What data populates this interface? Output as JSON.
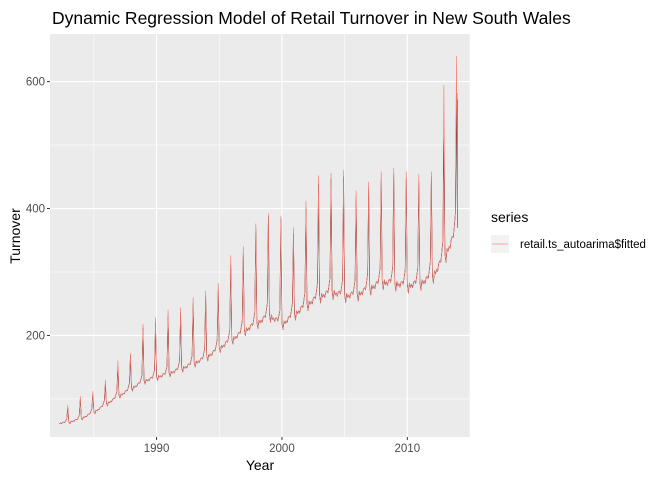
{
  "chart_data": {
    "type": "line",
    "title": "Dynamic Regression Model of Retail Turnover in New South Wales",
    "xlabel": "Year",
    "ylabel": "Turnover",
    "xlim": [
      1981.5,
      2015.0
    ],
    "ylim": [
      40,
      675
    ],
    "x_ticks": [
      1990,
      2000,
      2010
    ],
    "y_ticks": [
      200,
      400,
      600
    ],
    "x_tick_labels": [
      "1990",
      "2000",
      "2010"
    ],
    "y_tick_labels": [
      "200",
      "400",
      "600"
    ],
    "grid": true,
    "legend": {
      "title": "series",
      "position": "right"
    },
    "series": [
      {
        "name": "",
        "color": "#000000",
        "start": 1982.25,
        "frequency": 12,
        "annual_base": [
          [
            1982,
            62
          ],
          [
            1983,
            64
          ],
          [
            1984,
            70
          ],
          [
            1985,
            80
          ],
          [
            1986,
            93
          ],
          [
            1987,
            106
          ],
          [
            1988,
            118
          ],
          [
            1989,
            130
          ],
          [
            1990,
            136
          ],
          [
            1991,
            142
          ],
          [
            1992,
            150
          ],
          [
            1993,
            158
          ],
          [
            1994,
            168
          ],
          [
            1995,
            182
          ],
          [
            1996,
            196
          ],
          [
            1997,
            210
          ],
          [
            1998,
            222
          ],
          [
            1999,
            235
          ],
          [
            2000,
            220
          ],
          [
            2001,
            236
          ],
          [
            2002,
            252
          ],
          [
            2003,
            265
          ],
          [
            2004,
            272
          ],
          [
            2005,
            266
          ],
          [
            2006,
            268
          ],
          [
            2007,
            278
          ],
          [
            2008,
            288
          ],
          [
            2009,
            286
          ],
          [
            2010,
            282
          ],
          [
            2011,
            286
          ],
          [
            2012,
            296
          ],
          [
            2013,
            330
          ],
          [
            2014,
            372
          ]
        ],
        "december_peaks": [
          [
            1982,
            86
          ],
          [
            1983,
            100
          ],
          [
            1984,
            108
          ],
          [
            1985,
            124
          ],
          [
            1986,
            150
          ],
          [
            1987,
            168
          ],
          [
            1988,
            212
          ],
          [
            1989,
            220
          ],
          [
            1990,
            230
          ],
          [
            1991,
            236
          ],
          [
            1992,
            250
          ],
          [
            1993,
            262
          ],
          [
            1994,
            272
          ],
          [
            1995,
            312
          ],
          [
            1996,
            328
          ],
          [
            1997,
            368
          ],
          [
            1998,
            388
          ],
          [
            1999,
            384
          ],
          [
            2000,
            360
          ],
          [
            2001,
            400
          ],
          [
            2002,
            438
          ],
          [
            2003,
            446
          ],
          [
            2004,
            450
          ],
          [
            2005,
            418
          ],
          [
            2006,
            432
          ],
          [
            2007,
            446
          ],
          [
            2008,
            454
          ],
          [
            2009,
            448
          ],
          [
            2010,
            442
          ],
          [
            2011,
            450
          ],
          [
            2012,
            510
          ],
          [
            2013,
            570
          ]
        ],
        "end": [
          2014.0,
          572
        ]
      },
      {
        "name": "retail.ts_autoarima$fitted",
        "color": "#F8766D",
        "start": 1982.25,
        "frequency": 12,
        "annual_base": [
          [
            1982,
            62
          ],
          [
            1983,
            64
          ],
          [
            1984,
            70
          ],
          [
            1985,
            80
          ],
          [
            1986,
            93
          ],
          [
            1987,
            106
          ],
          [
            1988,
            118
          ],
          [
            1989,
            130
          ],
          [
            1990,
            136
          ],
          [
            1991,
            142
          ],
          [
            1992,
            150
          ],
          [
            1993,
            158
          ],
          [
            1994,
            168
          ],
          [
            1995,
            182
          ],
          [
            1996,
            196
          ],
          [
            1997,
            210
          ],
          [
            1998,
            222
          ],
          [
            1999,
            235
          ],
          [
            2000,
            220
          ],
          [
            2001,
            236
          ],
          [
            2002,
            252
          ],
          [
            2003,
            265
          ],
          [
            2004,
            272
          ],
          [
            2005,
            266
          ],
          [
            2006,
            268
          ],
          [
            2007,
            278
          ],
          [
            2008,
            288
          ],
          [
            2009,
            286
          ],
          [
            2010,
            282
          ],
          [
            2011,
            286
          ],
          [
            2012,
            296
          ],
          [
            2013,
            330
          ],
          [
            2014,
            372
          ]
        ],
        "december_peaks": [
          [
            1982,
            90
          ],
          [
            1983,
            104
          ],
          [
            1984,
            112
          ],
          [
            1985,
            130
          ],
          [
            1986,
            160
          ],
          [
            1987,
            172
          ],
          [
            1988,
            218
          ],
          [
            1989,
            228
          ],
          [
            1990,
            240
          ],
          [
            1991,
            244
          ],
          [
            1992,
            260
          ],
          [
            1993,
            270
          ],
          [
            1994,
            282
          ],
          [
            1995,
            326
          ],
          [
            1996,
            340
          ],
          [
            1997,
            376
          ],
          [
            1998,
            392
          ],
          [
            1999,
            388
          ],
          [
            2000,
            370
          ],
          [
            2001,
            412
          ],
          [
            2002,
            452
          ],
          [
            2003,
            456
          ],
          [
            2004,
            460
          ],
          [
            2005,
            428
          ],
          [
            2006,
            442
          ],
          [
            2007,
            458
          ],
          [
            2008,
            464
          ],
          [
            2009,
            458
          ],
          [
            2010,
            454
          ],
          [
            2011,
            458
          ],
          [
            2012,
            594
          ],
          [
            2013,
            640
          ]
        ],
        "end": [
          2014.0,
          582
        ]
      }
    ]
  }
}
